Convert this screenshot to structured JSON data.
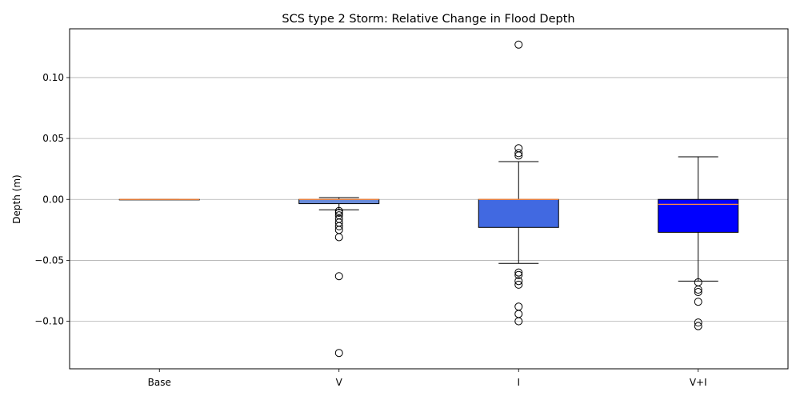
{
  "chart_data": {
    "type": "box",
    "title": "SCS type 2 Storm: Relative Change in Flood Depth",
    "xlabel": "",
    "ylabel": "Depth (m)",
    "ylim": [
      -0.139,
      0.14
    ],
    "yticks": [
      0.1,
      0.05,
      0.0,
      -0.05,
      -0.1
    ],
    "ytick_labels": [
      "0.10",
      "0.05",
      "0.00",
      "−0.05",
      "−0.10"
    ],
    "grid": "horizontal",
    "categories": [
      "Base",
      "V",
      "I",
      "V+I"
    ],
    "boxes": [
      {
        "name": "Base",
        "whisker_low": 0.0,
        "q1": 0.0,
        "median": 0.0,
        "q3": 0.0,
        "whisker_high": 0.0,
        "fliers": [],
        "color": "#ffffff"
      },
      {
        "name": "V",
        "whisker_low": -0.0085,
        "q1": -0.0035,
        "median": 0.0,
        "q3": 0.0,
        "whisker_high": 0.0015,
        "fliers": [
          -0.0095,
          -0.011,
          -0.013,
          -0.016,
          -0.019,
          -0.022,
          -0.025,
          -0.031,
          -0.063,
          -0.126
        ],
        "color": "#6a8bd8"
      },
      {
        "name": "I",
        "whisker_low": -0.0525,
        "q1": -0.023,
        "median": 0.0,
        "q3": 0.0,
        "whisker_high": 0.031,
        "fliers": [
          0.127,
          0.042,
          0.038,
          0.036,
          -0.06,
          -0.062,
          -0.067,
          -0.07,
          -0.088,
          -0.094,
          -0.1
        ],
        "color": "#4169e1"
      },
      {
        "name": "V+I",
        "whisker_low": -0.067,
        "q1": -0.027,
        "median": -0.004,
        "q3": 0.0,
        "whisker_high": 0.035,
        "fliers": [
          -0.068,
          -0.074,
          -0.076,
          -0.084,
          -0.101,
          -0.104
        ],
        "color": "#0000ff"
      }
    ],
    "median_color": "#ff8c42"
  }
}
